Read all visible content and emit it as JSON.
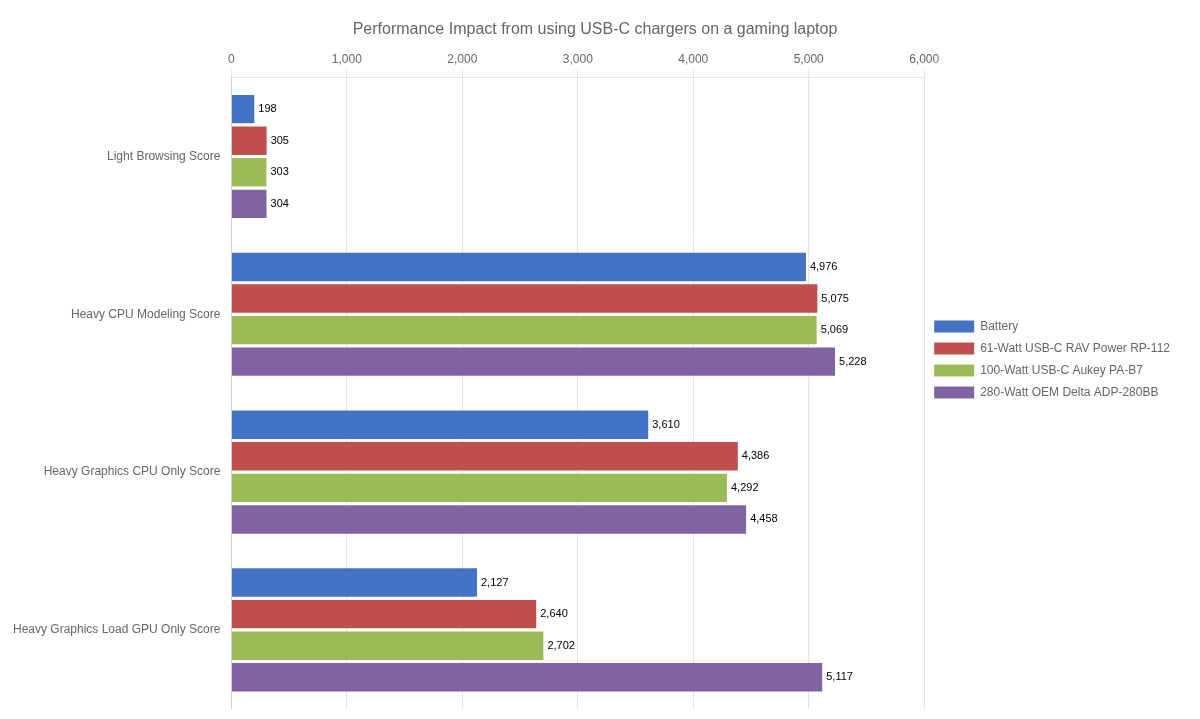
{
  "chart_data": {
    "type": "bar",
    "orientation": "horizontal",
    "title": "Performance Impact from using USB-C chargers on a gaming laptop",
    "categories": [
      "Heavy Graphics Load GPU Only Score",
      "Heavy Graphics CPU Only Score",
      "Heavy CPU Modeling Score",
      "Light Browsing Score"
    ],
    "series": [
      {
        "name": "Battery",
        "color": "#4472C4",
        "values": [
          2127,
          3610,
          4976,
          198
        ],
        "value_labels": [
          "2,127",
          "3,610",
          "4,976",
          "198"
        ]
      },
      {
        "name": "61-Watt USB-C RAV Power RP-112",
        "color": "#C0504D",
        "values": [
          2640,
          4386,
          5075,
          305
        ],
        "value_labels": [
          "2,640",
          "4,386",
          "5,075",
          "305"
        ]
      },
      {
        "name": "100-Watt USB-C Aukey PA-B7",
        "color": "#9BBB59",
        "values": [
          2702,
          4292,
          5069,
          303
        ],
        "value_labels": [
          "2,702",
          "4,292",
          "5,069",
          "303"
        ]
      },
      {
        "name": "280-Watt OEM Delta ADP-280BB",
        "color": "#8064A2",
        "values": [
          5117,
          4458,
          5228,
          304
        ],
        "value_labels": [
          "5,117",
          "4,458",
          "5,228",
          "304"
        ]
      }
    ],
    "xlim": [
      0,
      6000
    ],
    "xticks": [
      0,
      {
        "value": 1000,
        "label": "1,000"
      },
      {
        "value": 2000,
        "label": "2,000"
      },
      {
        "value": 3000,
        "label": "3,000"
      },
      {
        "value": 4000,
        "label": "4,000"
      },
      {
        "value": 5000,
        "label": "5,000"
      },
      {
        "value": 6000,
        "label": "6,000"
      }
    ],
    "grid": true,
    "legend": "right",
    "data_labels": true
  }
}
